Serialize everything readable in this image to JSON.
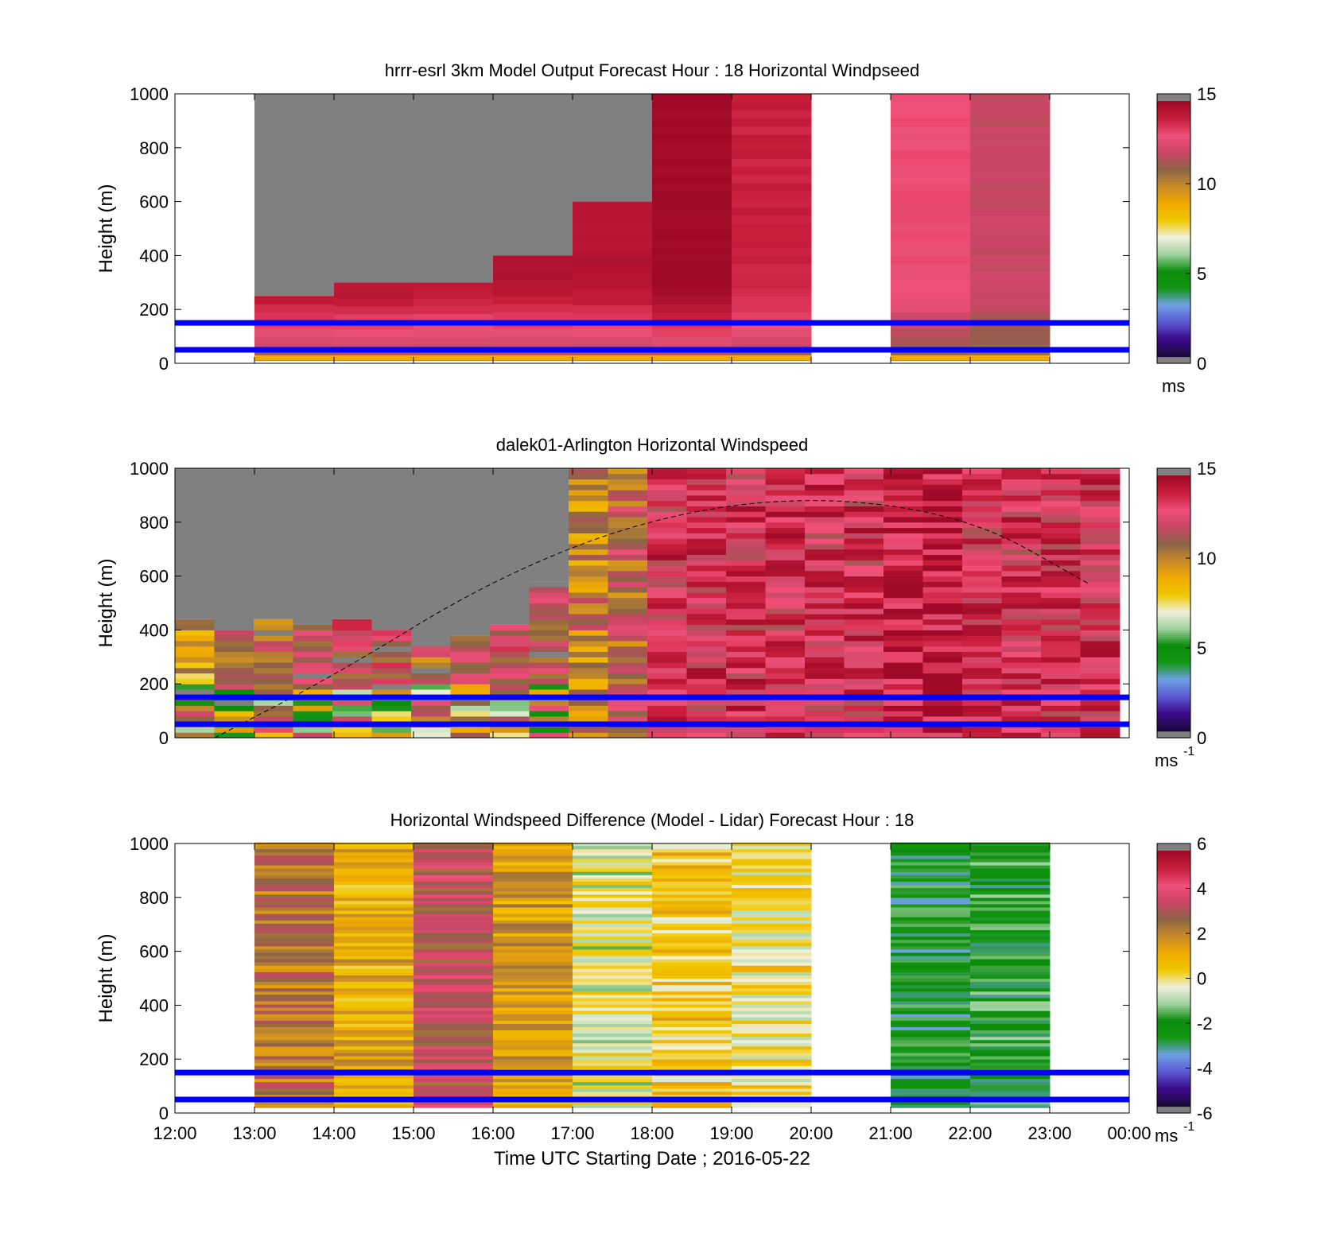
{
  "figure": {
    "xlabel": "Time UTC  Starting Date ; 2016-05-22",
    "time_ticks": [
      "12:00",
      "13:00",
      "14:00",
      "15:00",
      "16:00",
      "17:00",
      "18:00",
      "19:00",
      "20:00",
      "21:00",
      "22:00",
      "23:00",
      "00:00"
    ]
  },
  "chart_data": [
    {
      "type": "heatmap",
      "title": "hrrr-esrl 3km Model Output   Forecast Hour : 18 Horizontal Windpseed",
      "ylabel": "Height (m)",
      "xlim": [
        "12:00",
        "00:00"
      ],
      "ylim": [
        0,
        1000
      ],
      "yticks": [
        "0",
        "200",
        "400",
        "600",
        "800",
        "1000"
      ],
      "colorbar": {
        "range": [
          0,
          15
        ],
        "ticks": [
          "0",
          "5",
          "10",
          "15"
        ],
        "unit_label": "ms",
        "unit_sup": ""
      },
      "reference_lines_m": [
        50,
        150
      ],
      "no_data_hours": [
        "12:00-13:00",
        "20:00-21:00",
        "23:00-00:00"
      ],
      "hourly_profiles": [
        {
          "start": "13:00",
          "data_top_m": 250,
          "ws_low_ms": 10,
          "ws_high_ms": 14.5
        },
        {
          "start": "14:00",
          "data_top_m": 300,
          "ws_low_ms": 10,
          "ws_high_ms": 14.5
        },
        {
          "start": "15:00",
          "data_top_m": 300,
          "ws_low_ms": 10,
          "ws_high_ms": 14.2
        },
        {
          "start": "16:00",
          "data_top_m": 400,
          "ws_low_ms": 10,
          "ws_high_ms": 14.5
        },
        {
          "start": "17:00",
          "data_top_m": 600,
          "ws_low_ms": 10,
          "ws_high_ms": 14.5
        },
        {
          "start": "18:00",
          "data_top_m": 1000,
          "ws_low_ms": 10,
          "ws_high_ms": 15
        },
        {
          "start": "19:00",
          "data_top_m": 1000,
          "ws_low_ms": 10,
          "ws_high_ms": 14
        },
        {
          "start": "21:00",
          "data_top_m": 1000,
          "ws_low_ms": 10,
          "ws_high_ms": 13
        },
        {
          "start": "22:00",
          "data_top_m": 1000,
          "ws_low_ms": 10,
          "ws_high_ms": 12
        }
      ]
    },
    {
      "type": "heatmap",
      "title": "dalek01-Arlington  Horizontal Windspeed",
      "ylabel": "Height (m)",
      "xlim": [
        "12:00",
        "00:00"
      ],
      "ylim": [
        0,
        1000
      ],
      "yticks": [
        "0",
        "200",
        "400",
        "600",
        "800",
        "1000"
      ],
      "colorbar": {
        "range": [
          0,
          15
        ],
        "ticks": [
          "0",
          "5",
          "10",
          "15"
        ],
        "unit_label": "ms",
        "unit_sup": "-1"
      },
      "reference_lines_m": [
        50,
        150
      ],
      "boundary_layer_curve": [
        {
          "t": "12:30",
          "h": 0
        },
        {
          "t": "14:00",
          "h": 230
        },
        {
          "t": "16:00",
          "h": 590
        },
        {
          "t": "18:00",
          "h": 820
        },
        {
          "t": "20:00",
          "h": 900
        },
        {
          "t": "22:00",
          "h": 820
        },
        {
          "t": "23:30",
          "h": 570
        }
      ],
      "half_hour_data_top_m": [
        440,
        400,
        440,
        420,
        440,
        400,
        330,
        380,
        420,
        580,
        1000,
        1000,
        1000,
        1000,
        1000,
        1000,
        1000,
        1000,
        1000,
        1000,
        1000,
        1000,
        1000,
        1000
      ],
      "half_hour_mean_ws_ms": [
        9,
        10,
        11,
        12,
        12,
        12,
        11,
        12,
        12,
        11,
        10,
        11,
        13,
        13,
        13,
        13,
        13,
        13,
        14,
        14,
        13,
        13,
        13,
        13
      ]
    },
    {
      "type": "heatmap",
      "title": "Horizontal Windspeed Difference (Model - Lidar) Forecast Hour : 18",
      "ylabel": "Height (m)",
      "xlim": [
        "12:00",
        "00:00"
      ],
      "ylim": [
        0,
        1000
      ],
      "yticks": [
        "0",
        "200",
        "400",
        "600",
        "800",
        "1000"
      ],
      "colorbar": {
        "range": [
          -6,
          6
        ],
        "ticks": [
          "-6",
          "-4",
          "-2",
          "0",
          "2",
          "4",
          "6"
        ],
        "unit_label": "ms",
        "unit_sup": "-1"
      },
      "reference_lines_m": [
        50,
        150
      ],
      "no_data_hours": [
        "12:00-13:00",
        "20:00-21:00",
        "23:00-00:00"
      ],
      "hourly_mean_difference_ms": [
        {
          "start": "13:00",
          "diff": 2.5
        },
        {
          "start": "14:00",
          "diff": 1.2
        },
        {
          "start": "15:00",
          "diff": 3.5
        },
        {
          "start": "16:00",
          "diff": 1.5
        },
        {
          "start": "17:00",
          "diff": -0.5
        },
        {
          "start": "18:00",
          "diff": 0.5
        },
        {
          "start": "19:00",
          "diff": 0.0
        },
        {
          "start": "21:00",
          "diff": -2.5
        },
        {
          "start": "22:00",
          "diff": -2.2
        }
      ]
    }
  ],
  "colors": {
    "missing": "#808080",
    "reference_line": "#0000ff",
    "speed_scale": [
      "#808080",
      "#1a0a3c",
      "#3c0a8c",
      "#5a5ad2",
      "#6ea0e6",
      "#149614",
      "#0a8c0a",
      "#a0d2a0",
      "#f0f0dc",
      "#f0c800",
      "#f0aa00",
      "#c88c28",
      "#8c6446",
      "#c84664",
      "#f05078",
      "#c81e3c",
      "#a00a28",
      "#808080"
    ],
    "diff_scale": [
      "#808080",
      "#1a0a3c",
      "#3c0a8c",
      "#5a5ad2",
      "#6ea0e6",
      "#149614",
      "#0a8c0a",
      "#a0d2a0",
      "#f0f0dc",
      "#f0c800",
      "#f0aa00",
      "#c88c28",
      "#8c6446",
      "#c84664",
      "#f05078",
      "#c81e3c",
      "#a00a28",
      "#808080"
    ]
  }
}
